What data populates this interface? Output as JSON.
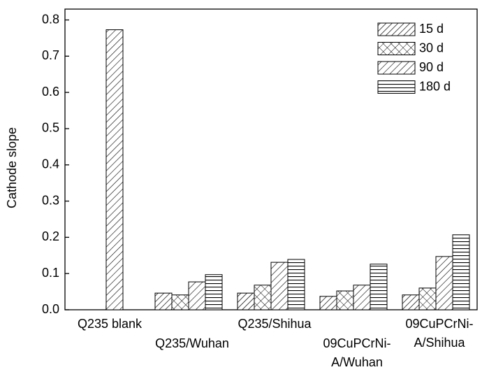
{
  "chart_data": {
    "type": "bar",
    "ylabel": "Cathode slope",
    "categories": [
      "Q235 blank",
      "Q235/Wuhan",
      "Q235/Shihua",
      "09CuPCrNi-A/Wuhan",
      "09CuPCrNi-A/Shihua"
    ],
    "series": [
      {
        "name": "15 d",
        "color": "#000000",
        "pattern": "fine-diagonal",
        "values": [
          null,
          0.046,
          0.046,
          0.037,
          0.041
        ]
      },
      {
        "name": "30 d",
        "color": "#000000",
        "pattern": "cross",
        "values": [
          null,
          0.041,
          0.068,
          0.052,
          0.06
        ]
      },
      {
        "name": "90 d",
        "color": "#000000",
        "pattern": "diagonal",
        "values": [
          0.773,
          0.077,
          0.131,
          0.068,
          0.147
        ]
      },
      {
        "name": "180 d",
        "color": "#000000",
        "pattern": "horizontal",
        "values": [
          null,
          0.097,
          0.139,
          0.126,
          0.207
        ]
      }
    ],
    "ylim": [
      0,
      0.83
    ],
    "yticks": [
      {
        "value": 0,
        "label": "0.0"
      },
      0.1,
      0.2,
      0.3,
      0.4,
      0.5,
      0.6,
      0.7,
      0.8
    ],
    "legend": "upper right"
  }
}
